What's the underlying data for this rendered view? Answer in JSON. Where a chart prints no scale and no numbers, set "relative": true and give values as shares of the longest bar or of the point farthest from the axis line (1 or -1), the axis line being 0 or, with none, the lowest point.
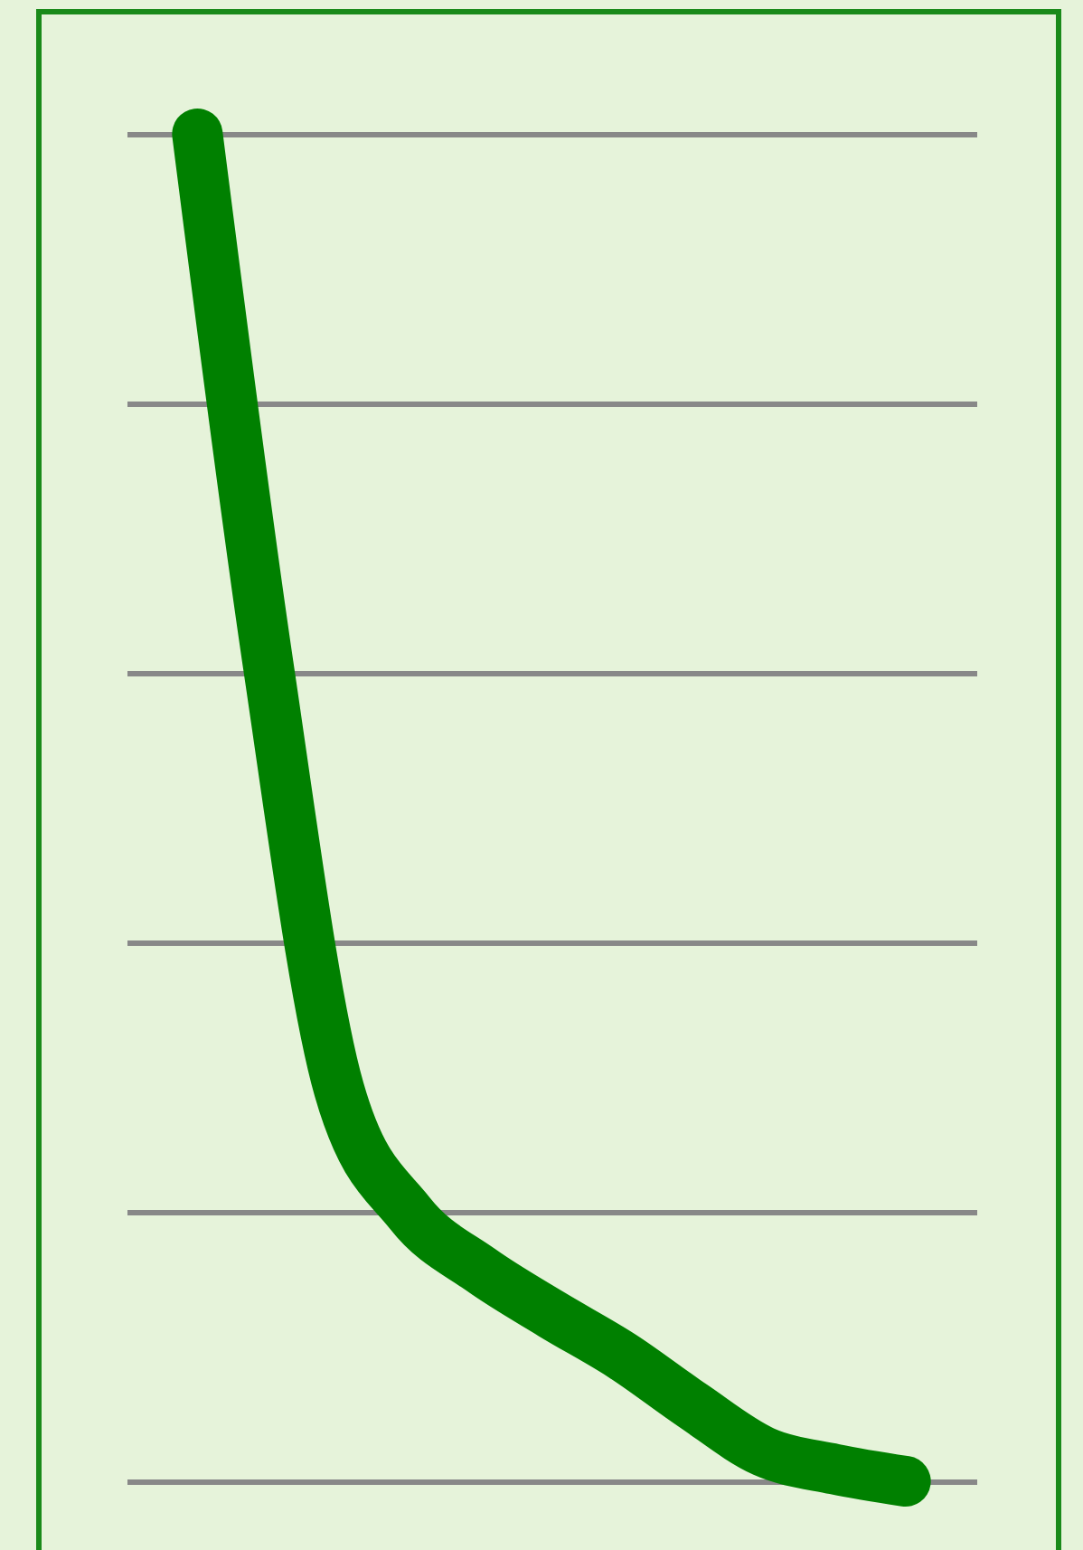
{
  "chart_data": {
    "type": "line",
    "relative": true,
    "grid": "y",
    "line_style": "solid",
    "categories": [
      null,
      null,
      null,
      null,
      null,
      null,
      null,
      null,
      null,
      null,
      null
    ],
    "series": [
      {
        "color": "#008000",
        "values": [
          1,
          0.606,
          0.291,
          0.199,
          0.157,
          0.124,
          0.093,
          0.056,
          0.022,
          0.009,
          0
        ]
      }
    ]
  }
}
